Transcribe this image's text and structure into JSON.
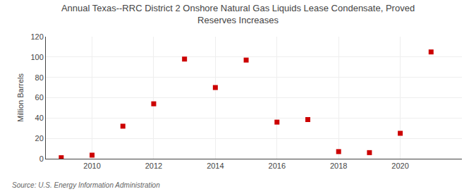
{
  "chart_data": {
    "type": "scatter",
    "title": "Annual Texas--RRC District 2 Onshore Natural Gas Liquids Lease Condensate, Proved\nReserves Increases",
    "y_label": "Million Barrels",
    "annotations": [
      "Source: U.S. Energy Information Administration"
    ],
    "x": [
      2009,
      2010,
      2011,
      2012,
      2013,
      2014,
      2015,
      2016,
      2017,
      2018,
      2019,
      2020,
      2021
    ],
    "values": [
      1.0,
      3.5,
      32.0,
      54.0,
      98.0,
      70.0,
      97.0,
      36.0,
      38.5,
      7.0,
      6.0,
      25.0,
      105.0
    ],
    "color": "#cc0000",
    "marker": "square",
    "xlim": [
      2008.5,
      2022
    ],
    "xticks": [
      2010,
      2012,
      2014,
      2016,
      2018,
      2020
    ],
    "ylim": [
      0,
      120
    ],
    "yticks": [
      0,
      20,
      40,
      60,
      80,
      100,
      120
    ],
    "grid": true
  }
}
